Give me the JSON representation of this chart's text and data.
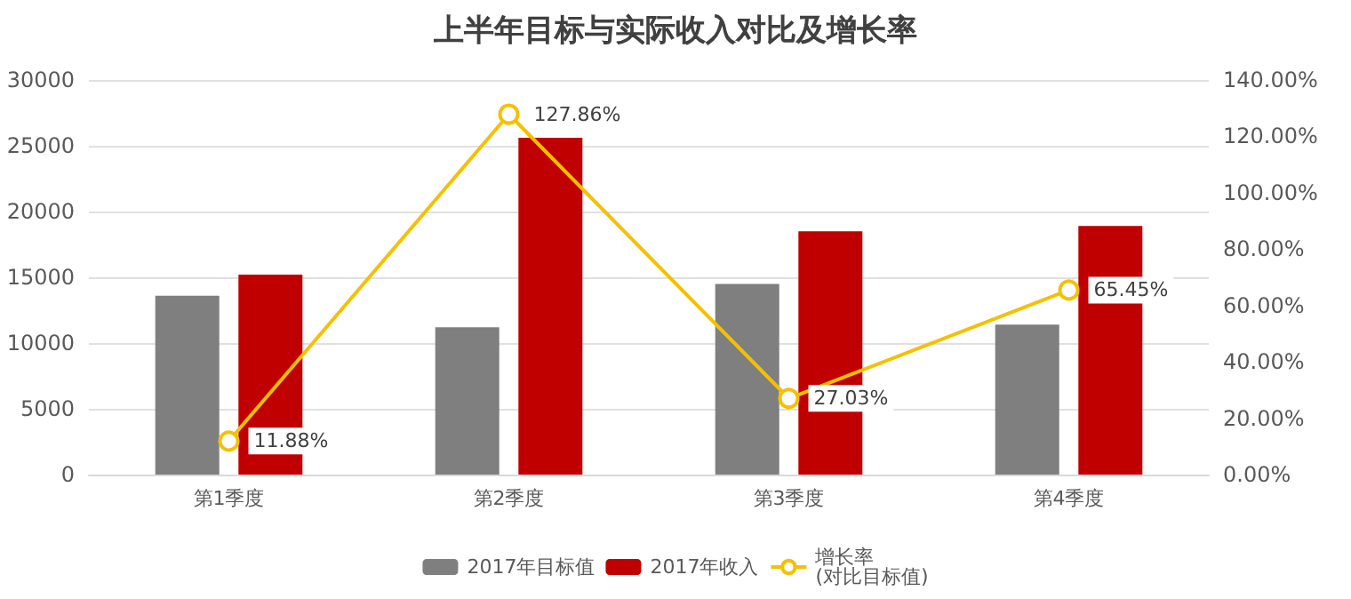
{
  "chart_data": {
    "type": "bar",
    "title": "上半年目标与实际收入对比及增长率",
    "categories": [
      "第1季度",
      "第2季度",
      "第3季度",
      "第4季度"
    ],
    "series": [
      {
        "name": "2017年目标值",
        "color": "#7f7f7f",
        "values": [
          13600,
          11200,
          14500,
          11400
        ]
      },
      {
        "name": "2017年收入",
        "color": "#c00000",
        "values": [
          15200,
          25600,
          18500,
          18900
        ]
      },
      {
        "name": "增长率\n(对比目标值)",
        "type": "line",
        "axis": "y2",
        "color": "#f5c000",
        "marker": "circle",
        "values": [
          11.88,
          127.86,
          27.03,
          65.45
        ],
        "value_labels": [
          "11.88%",
          "127.86%",
          "27.03%",
          "65.45%"
        ]
      }
    ],
    "ylim": [
      0,
      30000
    ],
    "yticks": [
      0,
      5000,
      10000,
      15000,
      20000,
      25000,
      30000
    ],
    "y2lim": [
      0,
      140
    ],
    "y2ticks": [
      {
        "value": 0,
        "label": "0.00%"
      },
      {
        "value": 20,
        "label": "20.00%"
      },
      {
        "value": 40,
        "label": "40.00%"
      },
      {
        "value": 60,
        "label": "60.00%"
      },
      {
        "value": 80,
        "label": "80.00%"
      },
      {
        "value": 100,
        "label": "100.00%"
      },
      {
        "value": 120,
        "label": "120.00%"
      },
      {
        "value": 140,
        "label": "140.00%"
      }
    ],
    "grid": "y",
    "legend": "bottom"
  }
}
